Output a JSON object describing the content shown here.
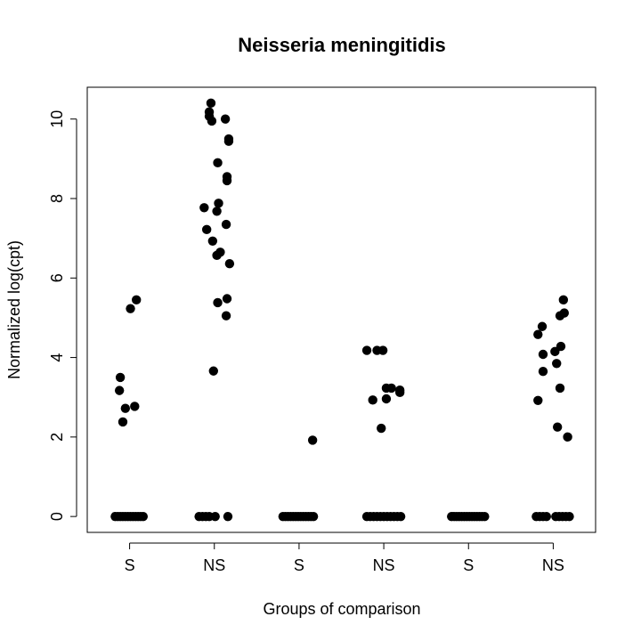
{
  "chart_data": {
    "type": "scatter",
    "title": "Neisseria meningitidis",
    "xlabel": "Groups of comparison",
    "ylabel": "Normalized log(cpt)",
    "categories": [
      "S",
      "NS",
      "S",
      "NS",
      "S",
      "NS"
    ],
    "yticks": [
      0,
      2,
      4,
      6,
      8,
      10
    ],
    "ylim": [
      -0.4,
      10.8
    ],
    "grid": false,
    "marker_color": "#000000",
    "groups": [
      {
        "label": "S",
        "points": [
          {
            "x": 0.89,
            "y": 3.5
          },
          {
            "x": 0.88,
            "y": 3.17
          },
          {
            "x": 0.95,
            "y": 2.72
          },
          {
            "x": 1.06,
            "y": 2.77
          },
          {
            "x": 0.92,
            "y": 2.38
          },
          {
            "x": 1.01,
            "y": 5.23
          },
          {
            "x": 1.08,
            "y": 5.45
          },
          {
            "x": 0.83,
            "y": 0
          },
          {
            "x": 0.86,
            "y": 0
          },
          {
            "x": 0.89,
            "y": 0
          },
          {
            "x": 0.92,
            "y": 0
          },
          {
            "x": 0.95,
            "y": 0
          },
          {
            "x": 0.98,
            "y": 0
          },
          {
            "x": 1.01,
            "y": 0
          },
          {
            "x": 1.04,
            "y": 0
          },
          {
            "x": 1.07,
            "y": 0
          },
          {
            "x": 1.1,
            "y": 0
          },
          {
            "x": 1.13,
            "y": 0
          },
          {
            "x": 1.16,
            "y": 0
          }
        ]
      },
      {
        "label": "NS",
        "points": [
          {
            "x": 1.96,
            "y": 10.4
          },
          {
            "x": 1.94,
            "y": 10.18
          },
          {
            "x": 1.94,
            "y": 10.07
          },
          {
            "x": 1.97,
            "y": 9.95
          },
          {
            "x": 2.13,
            "y": 10.0
          },
          {
            "x": 2.17,
            "y": 9.5
          },
          {
            "x": 2.17,
            "y": 9.44
          },
          {
            "x": 2.04,
            "y": 8.9
          },
          {
            "x": 2.15,
            "y": 8.55
          },
          {
            "x": 2.15,
            "y": 8.45
          },
          {
            "x": 2.05,
            "y": 7.88
          },
          {
            "x": 1.88,
            "y": 7.77
          },
          {
            "x": 2.03,
            "y": 7.68
          },
          {
            "x": 2.14,
            "y": 7.35
          },
          {
            "x": 1.91,
            "y": 7.22
          },
          {
            "x": 1.98,
            "y": 6.93
          },
          {
            "x": 2.07,
            "y": 6.65
          },
          {
            "x": 2.03,
            "y": 6.57
          },
          {
            "x": 2.18,
            "y": 6.36
          },
          {
            "x": 2.15,
            "y": 5.48
          },
          {
            "x": 2.04,
            "y": 5.38
          },
          {
            "x": 2.14,
            "y": 5.05
          },
          {
            "x": 1.99,
            "y": 3.66
          },
          {
            "x": 1.82,
            "y": 0
          },
          {
            "x": 1.86,
            "y": 0
          },
          {
            "x": 1.9,
            "y": 0
          },
          {
            "x": 1.94,
            "y": 0
          },
          {
            "x": 2.01,
            "y": 0
          },
          {
            "x": 2.16,
            "y": 0
          }
        ]
      },
      {
        "label": "S",
        "points": [
          {
            "x": 3.16,
            "y": 1.92
          },
          {
            "x": 2.81,
            "y": 0
          },
          {
            "x": 2.84,
            "y": 0
          },
          {
            "x": 2.87,
            "y": 0
          },
          {
            "x": 2.9,
            "y": 0
          },
          {
            "x": 2.93,
            "y": 0
          },
          {
            "x": 2.96,
            "y": 0
          },
          {
            "x": 2.99,
            "y": 0
          },
          {
            "x": 3.02,
            "y": 0
          },
          {
            "x": 3.05,
            "y": 0
          },
          {
            "x": 3.08,
            "y": 0
          },
          {
            "x": 3.11,
            "y": 0
          },
          {
            "x": 3.14,
            "y": 0
          },
          {
            "x": 3.17,
            "y": 0
          }
        ]
      },
      {
        "label": "NS",
        "points": [
          {
            "x": 3.8,
            "y": 4.18
          },
          {
            "x": 3.92,
            "y": 4.18
          },
          {
            "x": 3.99,
            "y": 4.18
          },
          {
            "x": 4.03,
            "y": 3.23
          },
          {
            "x": 4.09,
            "y": 3.23
          },
          {
            "x": 4.19,
            "y": 3.18
          },
          {
            "x": 4.19,
            "y": 3.12
          },
          {
            "x": 3.87,
            "y": 2.93
          },
          {
            "x": 4.03,
            "y": 2.96
          },
          {
            "x": 3.97,
            "y": 2.22
          },
          {
            "x": 3.8,
            "y": 0
          },
          {
            "x": 3.84,
            "y": 0
          },
          {
            "x": 3.88,
            "y": 0
          },
          {
            "x": 3.92,
            "y": 0
          },
          {
            "x": 3.96,
            "y": 0
          },
          {
            "x": 4.0,
            "y": 0
          },
          {
            "x": 4.04,
            "y": 0
          },
          {
            "x": 4.08,
            "y": 0
          },
          {
            "x": 4.12,
            "y": 0
          },
          {
            "x": 4.16,
            "y": 0
          },
          {
            "x": 4.2,
            "y": 0
          }
        ]
      },
      {
        "label": "S",
        "points": [
          {
            "x": 4.8,
            "y": 0
          },
          {
            "x": 4.83,
            "y": 0
          },
          {
            "x": 4.86,
            "y": 0
          },
          {
            "x": 4.89,
            "y": 0
          },
          {
            "x": 4.92,
            "y": 0
          },
          {
            "x": 4.95,
            "y": 0
          },
          {
            "x": 4.98,
            "y": 0
          },
          {
            "x": 5.01,
            "y": 0
          },
          {
            "x": 5.04,
            "y": 0
          },
          {
            "x": 5.07,
            "y": 0
          },
          {
            "x": 5.1,
            "y": 0
          },
          {
            "x": 5.13,
            "y": 0
          },
          {
            "x": 5.16,
            "y": 0
          },
          {
            "x": 5.19,
            "y": 0
          }
        ]
      },
      {
        "label": "NS",
        "points": [
          {
            "x": 6.12,
            "y": 5.45
          },
          {
            "x": 6.13,
            "y": 5.12
          },
          {
            "x": 6.08,
            "y": 5.05
          },
          {
            "x": 5.87,
            "y": 4.78
          },
          {
            "x": 5.82,
            "y": 4.58
          },
          {
            "x": 6.09,
            "y": 4.28
          },
          {
            "x": 6.02,
            "y": 4.15
          },
          {
            "x": 5.88,
            "y": 4.08
          },
          {
            "x": 6.04,
            "y": 3.85
          },
          {
            "x": 5.88,
            "y": 3.65
          },
          {
            "x": 6.08,
            "y": 3.23
          },
          {
            "x": 5.82,
            "y": 2.92
          },
          {
            "x": 6.05,
            "y": 2.25
          },
          {
            "x": 6.17,
            "y": 2.0
          },
          {
            "x": 5.8,
            "y": 0
          },
          {
            "x": 5.84,
            "y": 0
          },
          {
            "x": 5.88,
            "y": 0
          },
          {
            "x": 5.92,
            "y": 0
          },
          {
            "x": 6.03,
            "y": 0
          },
          {
            "x": 6.07,
            "y": 0
          },
          {
            "x": 6.11,
            "y": 0
          },
          {
            "x": 6.15,
            "y": 0
          },
          {
            "x": 6.19,
            "y": 0
          }
        ]
      }
    ]
  }
}
